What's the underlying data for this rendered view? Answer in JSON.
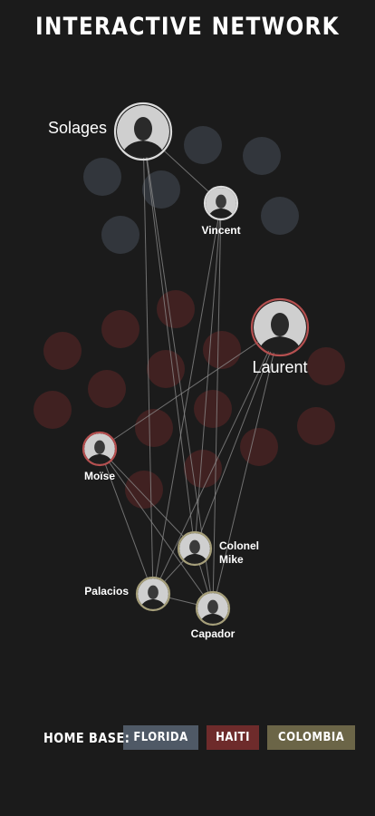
{
  "title": "INTERACTIVE NETWORK",
  "legend": {
    "label": "HOME BASE:",
    "items": [
      {
        "key": "florida",
        "label": "FLORIDA",
        "color": "#4f5966"
      },
      {
        "key": "haiti",
        "label": "HAITI",
        "color": "#6e2b2b"
      },
      {
        "key": "colombia",
        "label": "COLOMBIA",
        "color": "#6b6547"
      }
    ]
  },
  "people": [
    {
      "id": "solages",
      "name": "Solages",
      "base": "florida",
      "ring": "#dcdcdc"
    },
    {
      "id": "vincent",
      "name": "Vincent",
      "base": "florida",
      "ring": "#dcdcdc"
    },
    {
      "id": "laurent",
      "name": "Laurent",
      "base": "haiti",
      "ring": "#b55050"
    },
    {
      "id": "moise",
      "name": "Moïse",
      "base": "haiti",
      "ring": "#b55050"
    },
    {
      "id": "colonel-mike",
      "name": "Colonel Mike",
      "base": "colombia",
      "ring": "#a69f7a"
    },
    {
      "id": "palacios",
      "name": "Palacios",
      "base": "colombia",
      "ring": "#a69f7a"
    },
    {
      "id": "capador",
      "name": "Capador",
      "base": "colombia",
      "ring": "#a69f7a"
    }
  ],
  "links": [
    [
      "solages",
      "vincent"
    ],
    [
      "solages",
      "palacios"
    ],
    [
      "solages",
      "colonel-mike"
    ],
    [
      "solages",
      "capador"
    ],
    [
      "vincent",
      "palacios"
    ],
    [
      "vincent",
      "capador"
    ],
    [
      "vincent",
      "colonel-mike"
    ],
    [
      "laurent",
      "moise"
    ],
    [
      "laurent",
      "palacios"
    ],
    [
      "laurent",
      "capador"
    ],
    [
      "laurent",
      "colonel-mike"
    ],
    [
      "moise",
      "palacios"
    ],
    [
      "moise",
      "capador"
    ],
    [
      "moise",
      "colonel-mike"
    ],
    [
      "colonel-mike",
      "palacios"
    ],
    [
      "colonel-mike",
      "capador"
    ],
    [
      "palacios",
      "capador"
    ]
  ]
}
